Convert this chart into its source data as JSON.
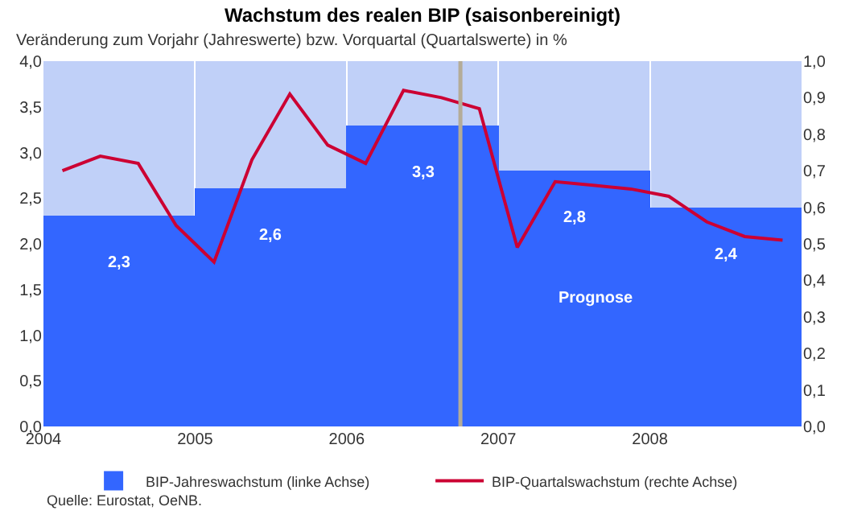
{
  "chart_data": {
    "type": "bar",
    "title": "Wachstum des realen BIP (saisonbereinigt)",
    "subtitle": "Veränderung zum Vorjahr (Jahreswerte) bzw. Vorquartal (Quartalswerte) in %",
    "x": [
      2004.5,
      2005.5,
      2006.5,
      2007.5,
      2008.5
    ],
    "series": [
      {
        "name": "BIP-Jahreswachstum (linke Achse)",
        "color": "#3366ff",
        "values": [
          2.3,
          2.6,
          3.3,
          2.8,
          2.4
        ],
        "value_labels": [
          "2,3",
          "2,6",
          "3,3",
          "2,8",
          "2,4"
        ]
      },
      {
        "name": "BIP-Quartalswachstum (rechte Achse)",
        "type": "line",
        "axis": "y2",
        "color": "#cc0033",
        "x": [
          2004.125,
          2004.375,
          2004.625,
          2004.875,
          2005.125,
          2005.375,
          2005.625,
          2005.875,
          2006.125,
          2006.375,
          2006.625,
          2006.875,
          2007.125,
          2007.375,
          2007.625,
          2007.875,
          2008.125,
          2008.375,
          2008.625,
          2008.875
        ],
        "values": [
          0.7,
          0.74,
          0.72,
          0.55,
          0.45,
          0.73,
          0.91,
          0.77,
          0.72,
          0.92,
          0.9,
          0.87,
          0.49,
          0.67,
          0.66,
          0.65,
          0.63,
          0.56,
          0.52,
          0.51
        ]
      }
    ],
    "xlim": [
      2004,
      2009
    ],
    "xticks": [
      2004,
      2005,
      2006,
      2007,
      2008
    ],
    "ylim": [
      0,
      4
    ],
    "yticks": [
      {
        "value": 0,
        "label": "0,0"
      },
      {
        "value": 0.5,
        "label": "0,5"
      },
      {
        "value": 1,
        "label": "1,0"
      },
      {
        "value": 1.5,
        "label": "1,5"
      },
      {
        "value": 2,
        "label": "2,0"
      },
      {
        "value": 2.5,
        "label": "2,5"
      },
      {
        "value": 3,
        "label": "3,0"
      },
      {
        "value": 3.5,
        "label": "3,5"
      },
      {
        "value": 4,
        "label": "4,0"
      }
    ],
    "y2lim": [
      0,
      1
    ],
    "y2ticks": [
      {
        "value": 0,
        "label": "0,0"
      },
      {
        "value": 0.1,
        "label": "0,1"
      },
      {
        "value": 0.2,
        "label": "0,2"
      },
      {
        "value": 0.3,
        "label": "0,3"
      },
      {
        "value": 0.4,
        "label": "0,4"
      },
      {
        "value": 0.5,
        "label": "0,5"
      },
      {
        "value": 0.6,
        "label": "0,6"
      },
      {
        "value": 0.7,
        "label": "0,7"
      },
      {
        "value": 0.8,
        "label": "0,8"
      },
      {
        "value": 0.9,
        "label": "0,9"
      },
      {
        "value": 1,
        "label": "1,0"
      }
    ],
    "bands": [
      {
        "axis": "x",
        "from": 2004,
        "to": 2009,
        "color": "#c0d0f8"
      }
    ],
    "ref_lines": [
      {
        "axis": "x",
        "value": 2006.75,
        "color": "#b4ac98"
      }
    ],
    "annotations": [
      "Prognose",
      "Quelle: Eurostat, OeNB."
    ],
    "grid": "x",
    "legend": "bottom",
    "marker": "none",
    "line_style": "solid"
  }
}
